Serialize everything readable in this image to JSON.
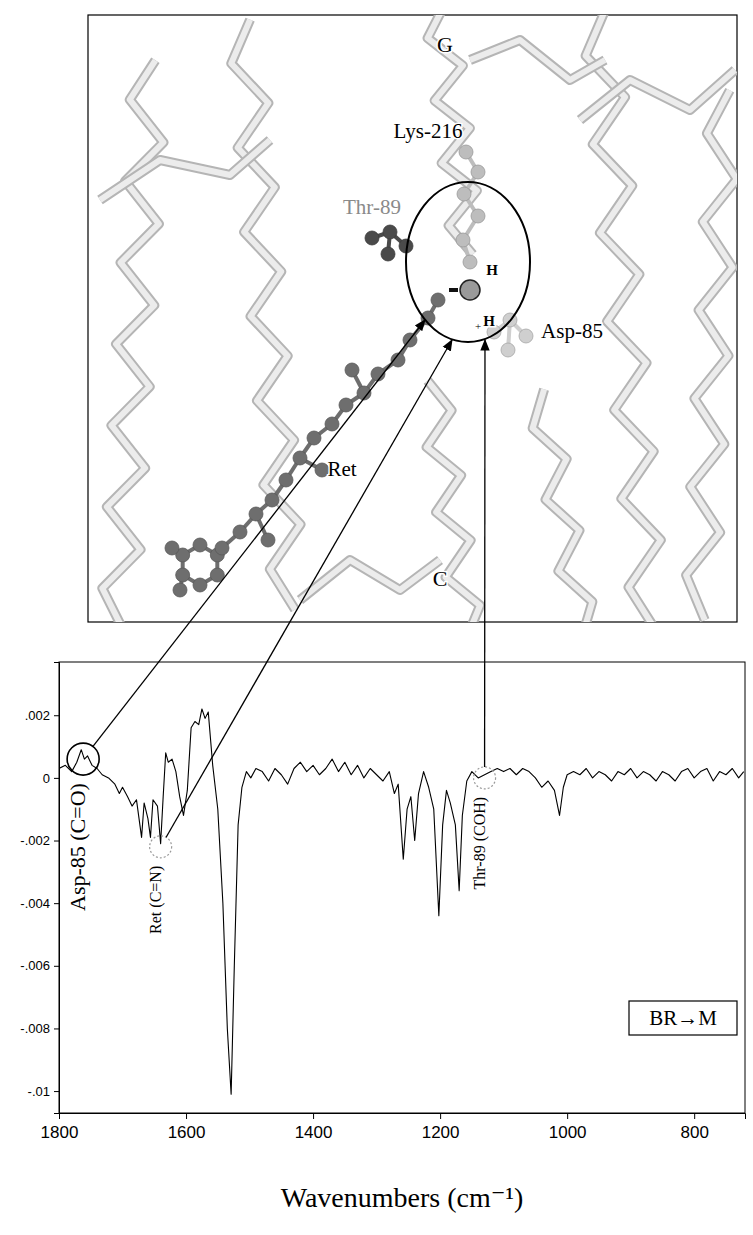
{
  "chart_data": {
    "type": "line",
    "title": "BR→M",
    "x_label": "Wavenumbers (cm⁻¹)",
    "xlim": [
      1800,
      720
    ],
    "xticks": [
      1800,
      1600,
      1400,
      1200,
      1000,
      800
    ],
    "ylim": [
      -0.0107,
      0.0037
    ],
    "yticks": [
      {
        "value": 0.002,
        "label": ".002"
      },
      0,
      {
        "value": -0.002,
        "label": "-.002"
      },
      {
        "value": -0.004,
        "label": "-.004"
      },
      {
        "value": -0.006,
        "label": "-.006"
      },
      {
        "value": -0.008,
        "label": "-.008"
      },
      {
        "value": -0.01,
        "label": "-.01"
      }
    ],
    "grid": false,
    "x": [
      1800,
      1790,
      1780,
      1772,
      1765,
      1760,
      1755,
      1748,
      1740,
      1732,
      1722,
      1712,
      1705,
      1700,
      1692,
      1685,
      1678,
      1670,
      1666,
      1660,
      1656,
      1652,
      1645,
      1640,
      1636,
      1632,
      1628,
      1622,
      1616,
      1610,
      1604,
      1598,
      1592,
      1586,
      1580,
      1575,
      1570,
      1565,
      1558,
      1550,
      1542,
      1535,
      1529,
      1524,
      1518,
      1512,
      1505,
      1498,
      1490,
      1480,
      1470,
      1460,
      1450,
      1440,
      1430,
      1420,
      1410,
      1400,
      1390,
      1380,
      1370,
      1360,
      1350,
      1340,
      1330,
      1320,
      1310,
      1300,
      1290,
      1280,
      1272,
      1266,
      1258,
      1252,
      1246,
      1240,
      1234,
      1226,
      1218,
      1210,
      1202,
      1196,
      1190,
      1184,
      1176,
      1170,
      1165,
      1158,
      1150,
      1140,
      1130,
      1120,
      1110,
      1100,
      1090,
      1080,
      1070,
      1060,
      1050,
      1040,
      1030,
      1020,
      1012,
      1006,
      1000,
      990,
      980,
      970,
      960,
      950,
      940,
      930,
      920,
      910,
      900,
      890,
      880,
      870,
      860,
      850,
      840,
      830,
      820,
      810,
      800,
      790,
      780,
      770,
      760,
      750,
      740,
      730,
      722
    ],
    "series": [
      {
        "color": "#000000",
        "values": [
          0.0003,
          0.0004,
          0.0002,
          0.0005,
          0.0009,
          0.0006,
          0.0007,
          0.0004,
          0.0003,
          0.0001,
          0,
          -0.0002,
          -0.0005,
          -0.0003,
          -0.0006,
          -0.0009,
          -0.0007,
          -0.0019,
          -0.0008,
          -0.0013,
          -0.0019,
          -0.0007,
          -0.0009,
          -0.0021,
          -0.0006,
          0.0008,
          0.0005,
          0.0006,
          0.0002,
          -0.0006,
          -0.0012,
          -0.0004,
          0.0016,
          0.0018,
          0.0017,
          0.0022,
          0.0019,
          0.0021,
          0.0004,
          -0.001,
          -0.004,
          -0.008,
          -0.0101,
          -0.006,
          -0.0015,
          -0.0003,
          0.0002,
          0,
          0.0003,
          0.0002,
          -0.0001,
          0.0003,
          0.0001,
          -0.0002,
          0.0003,
          0.0005,
          0.0002,
          0.0004,
          0.0001,
          0.0003,
          0.0006,
          0.0002,
          0.0005,
          0.0001,
          0.0004,
          0,
          0.0003,
          0.0001,
          -0.0001,
          0.0002,
          -0.0005,
          -0.0002,
          -0.0026,
          -0.001,
          -0.0006,
          -0.002,
          -0.0005,
          0.0002,
          -0.0003,
          -0.001,
          -0.0044,
          -0.0015,
          -0.0004,
          -0.0008,
          -0.0015,
          -0.0036,
          -0.0012,
          -0.0001,
          0.0002,
          0,
          0.0001,
          0.0002,
          0.0003,
          0.0002,
          0.0003,
          0.0001,
          0.0003,
          0.0002,
          0,
          -0.0003,
          -0.0001,
          -0.0004,
          -0.0012,
          -0.0003,
          0.0001,
          0.0002,
          0.0001,
          0.0003,
          0,
          0.0002,
          0.0001,
          -0.0001,
          0.0002,
          0.0001,
          0.0003,
          0,
          0.0002,
          0.0001,
          -0.0001,
          0.0002,
          0.0001,
          -0.0001,
          0.0002,
          0.0003,
          0,
          0.0002,
          0.0003,
          -0.0001,
          0.0002,
          0.0001,
          0.0003,
          0,
          0.0002
        ]
      }
    ],
    "annotations": [
      {
        "text": "Asp-85 (C=O)",
        "x": 1762,
        "y": 0.0006
      },
      {
        "text": "Ret (C=N)",
        "x": 1640,
        "y": -0.0022
      },
      {
        "text": "Thr-89 (COH)",
        "x": 1130,
        "y": 0
      }
    ]
  },
  "structure": {
    "labels": {
      "g": "G",
      "lys": "Lys-216",
      "thr": "Thr-89",
      "h_top": "H",
      "plus": "+",
      "h_bottom": "H",
      "asp": "Asp-85",
      "ret": "Ret",
      "c": "C"
    }
  }
}
